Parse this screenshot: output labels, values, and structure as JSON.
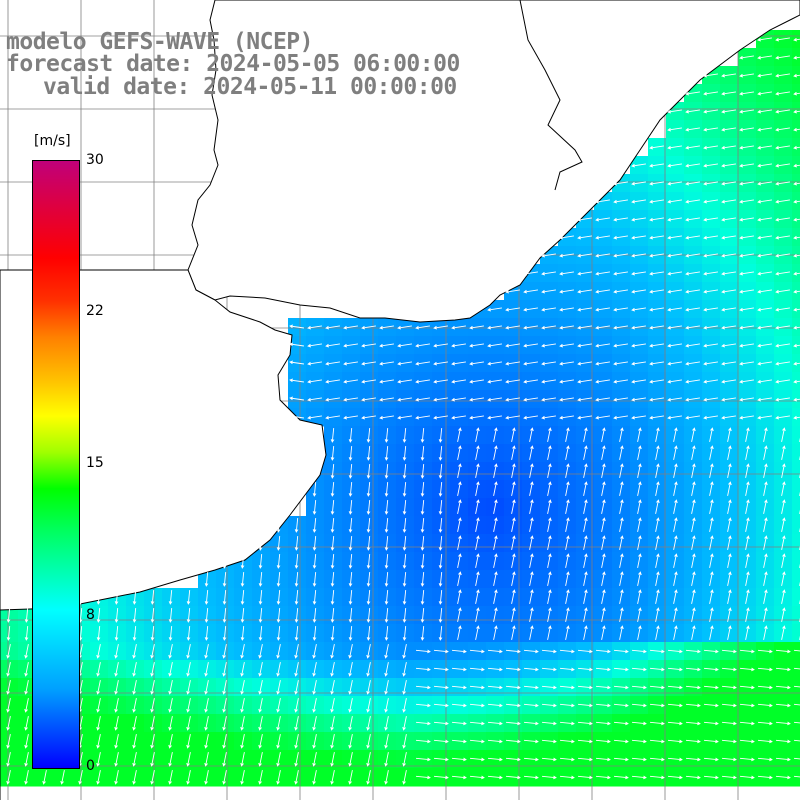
{
  "title": {
    "line1": "modelo GEFS-WAVE (NCEP)",
    "line2": "forecast date: 2024-05-05 06:00:00",
    "line3": "valid date: 2024-05-11 00:00:00"
  },
  "colorbar": {
    "unit": "[m/s]",
    "ticks": [
      {
        "label": "30",
        "value": 30
      },
      {
        "label": "22",
        "value": 22
      },
      {
        "label": "15",
        "value": 15
      },
      {
        "label": "8",
        "value": 8
      },
      {
        "label": "0",
        "value": 0
      }
    ],
    "colors": [
      "#0000ff",
      "#00a0ff",
      "#00ffff",
      "#00ff00",
      "#ffff00",
      "#ff8000",
      "#ff0000",
      "#c0007a"
    ]
  },
  "map_style": {
    "land_color": "#ffffff",
    "coast_color": "#000000",
    "grid_color": "#808080",
    "arrow_color": "#ffffff"
  }
}
